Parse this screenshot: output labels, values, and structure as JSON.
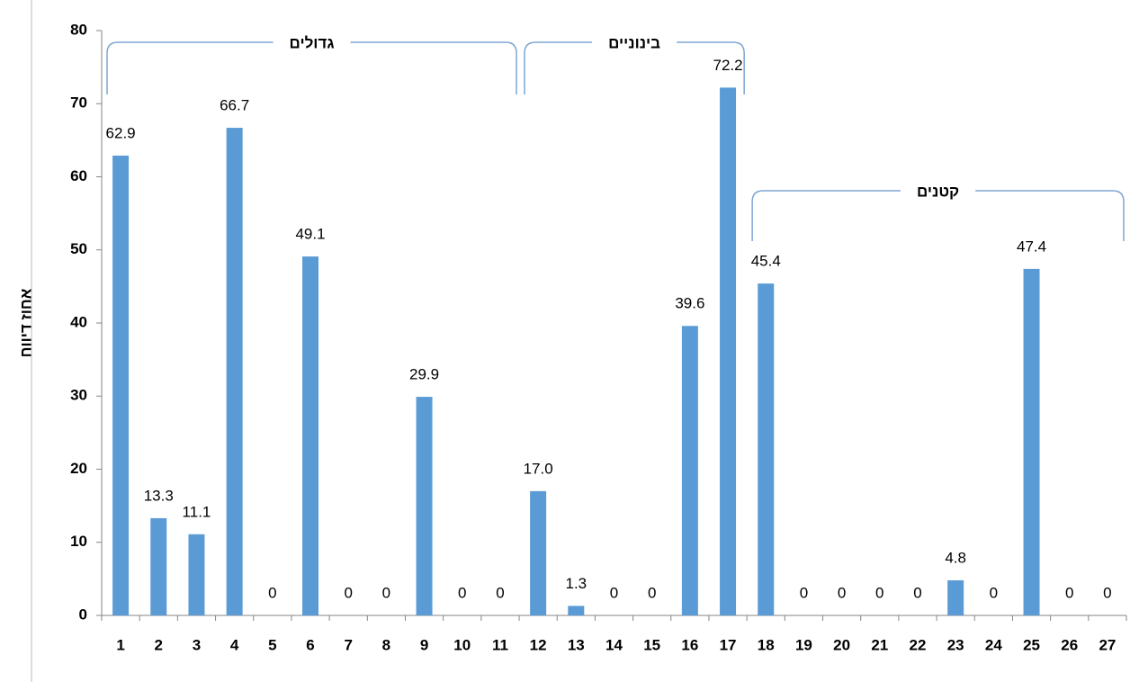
{
  "chart_data": {
    "type": "bar",
    "y_label": "אחוז דיווח",
    "categories": [
      "1",
      "2",
      "3",
      "4",
      "5",
      "6",
      "7",
      "8",
      "9",
      "10",
      "11",
      "12",
      "13",
      "14",
      "15",
      "16",
      "17",
      "18",
      "19",
      "20",
      "21",
      "22",
      "23",
      "24",
      "25",
      "26",
      "27"
    ],
    "values": [
      62.9,
      13.3,
      11.1,
      66.7,
      0,
      49.1,
      0,
      0,
      29.9,
      0,
      0,
      17.0,
      1.3,
      0,
      0,
      39.6,
      72.2,
      45.4,
      0,
      0,
      0,
      0,
      4.8,
      0,
      47.4,
      0,
      0
    ],
    "value_labels": [
      "62.9",
      "13.3",
      "11.1",
      "66.7",
      "0",
      "49.1",
      "0",
      "0",
      "29.9",
      "0",
      "0",
      "17.0",
      "1.3",
      "0",
      "0",
      "39.6",
      "72.2",
      "45.4",
      "0",
      "0",
      "0",
      "0",
      "4.8",
      "0",
      "47.4",
      "0",
      "0"
    ],
    "color": "#5b9bd5",
    "ylim": [
      0,
      80
    ],
    "yticks": [
      0,
      10,
      20,
      30,
      40,
      50,
      60,
      70,
      80
    ],
    "grid": false,
    "groups": [
      {
        "label": "גדולים",
        "first": "1",
        "last": "11"
      },
      {
        "label": "בינוניים",
        "first": "12",
        "last": "17"
      },
      {
        "label": "קטנים",
        "first": "18",
        "last": "27"
      }
    ]
  }
}
